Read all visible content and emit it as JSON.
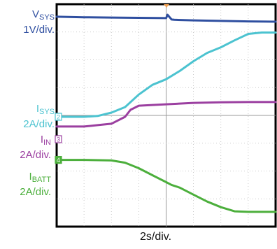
{
  "chart_data": {
    "type": "line",
    "xlabel": "2s/div.",
    "divisions": {
      "x": 8,
      "y": 8
    },
    "x_range_div": [
      0,
      8
    ],
    "y_range_div": [
      -4,
      4
    ],
    "grid": true,
    "series": [
      {
        "name": "VSYS",
        "name_main": "V",
        "name_sub": "SYS",
        "scale": "1V/div.",
        "marker": "",
        "color": "#2f4fa0",
        "x": [
          0,
          1,
          2,
          3,
          4,
          4.05,
          4.2,
          4.3,
          5,
          6,
          7,
          8
        ],
        "y": [
          3.55,
          3.53,
          3.52,
          3.51,
          3.5,
          3.62,
          3.45,
          3.44,
          3.42,
          3.4,
          3.38,
          3.37
        ]
      },
      {
        "name": "ISYS",
        "name_main": "I",
        "name_sub": "SYS",
        "scale": "2A/div.",
        "marker": "2",
        "color": "#4cc3d0",
        "x": [
          0,
          1,
          1.5,
          2,
          2.5,
          3,
          3.5,
          4,
          4.5,
          5,
          5.5,
          6,
          6.5,
          7,
          7.5,
          8
        ],
        "y": [
          -0.05,
          -0.05,
          -0.02,
          0.1,
          0.3,
          0.75,
          1.1,
          1.3,
          1.6,
          1.95,
          2.25,
          2.45,
          2.7,
          2.93,
          2.98,
          2.98
        ]
      },
      {
        "name": "IIN",
        "name_main": "I",
        "name_sub": "IN",
        "scale": "2A/div.",
        "marker": "3",
        "color": "#9b3fa0",
        "x": [
          0,
          1,
          1.5,
          2,
          2.5,
          2.7,
          3,
          4,
          5,
          6,
          7,
          8
        ],
        "y": [
          -0.4,
          -0.4,
          -0.35,
          -0.3,
          -0.05,
          0.2,
          0.35,
          0.4,
          0.45,
          0.47,
          0.48,
          0.48
        ]
      },
      {
        "name": "IBATT",
        "name_main": "I",
        "name_sub": "BATT",
        "scale": "2A/div.",
        "marker": "4",
        "color": "#4caf3c",
        "x": [
          0,
          1,
          2,
          2.5,
          3,
          3.5,
          4,
          4.2,
          4.5,
          5,
          5.5,
          6,
          6.5,
          7,
          8
        ],
        "y": [
          -1.6,
          -1.6,
          -1.62,
          -1.7,
          -1.9,
          -2.15,
          -2.4,
          -2.5,
          -2.6,
          -2.85,
          -3.1,
          -3.3,
          -3.45,
          -3.47,
          -3.47
        ]
      }
    ]
  }
}
